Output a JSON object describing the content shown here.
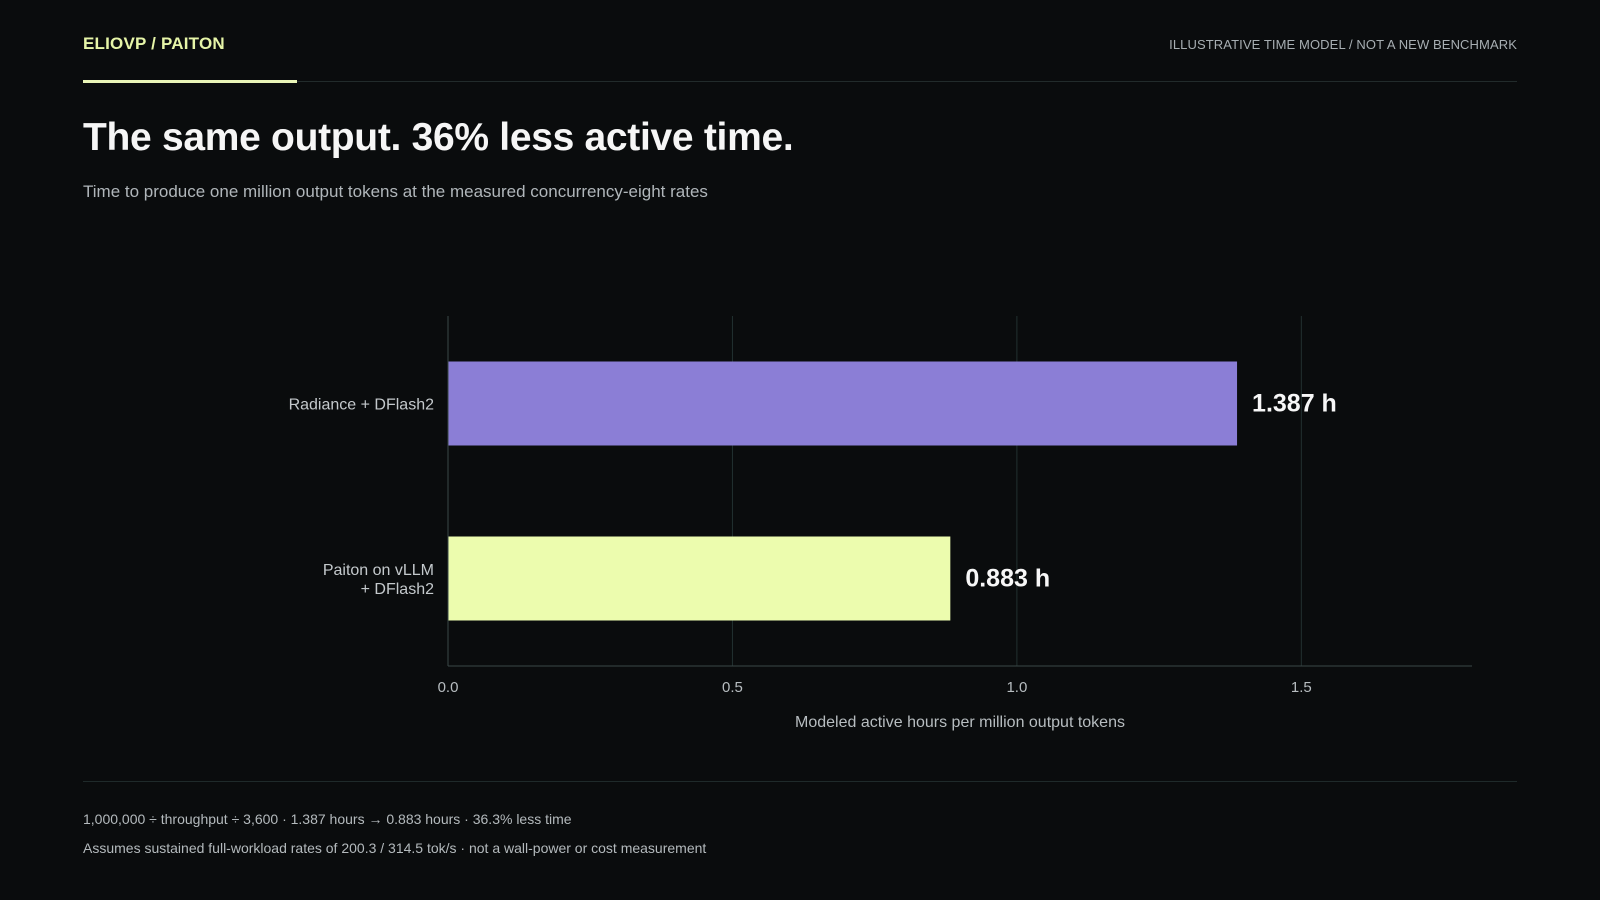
{
  "header": {
    "brand": "ELIOVP / PAITON",
    "note": "ILLUSTRATIVE TIME MODEL / NOT A NEW BENCHMARK"
  },
  "title": "The same output. 36% less active time.",
  "subtitle": "Time to produce one million output tokens at the measured concurrency-eight rates",
  "chart_data": {
    "type": "bar",
    "orientation": "horizontal",
    "categories": [
      [
        "Radiance + DFlash2"
      ],
      [
        "Paiton on vLLM",
        "+ DFlash2"
      ]
    ],
    "values": [
      1.387,
      0.883
    ],
    "value_labels": [
      "1.387 h",
      "0.883 h"
    ],
    "bar_colors": [
      "#8b7ed6",
      "#ecfcae"
    ],
    "xlabel": "Modeled active hours per million output tokens",
    "xticks": [
      0.0,
      0.5,
      1.0,
      1.5
    ],
    "xtick_labels": [
      "0.0",
      "0.5",
      "1.0",
      "1.5"
    ],
    "xlim": [
      0,
      1.8
    ],
    "grid": true
  },
  "footnotes": {
    "line1": "1,000,000 ÷ throughput ÷ 3,600 · 1.387 hours → 0.883 hours · 36.3% less time",
    "line2": "Assumes sustained full-workload rates of 200.3 / 314.5 tok/s · not a wall-power or cost measurement"
  }
}
